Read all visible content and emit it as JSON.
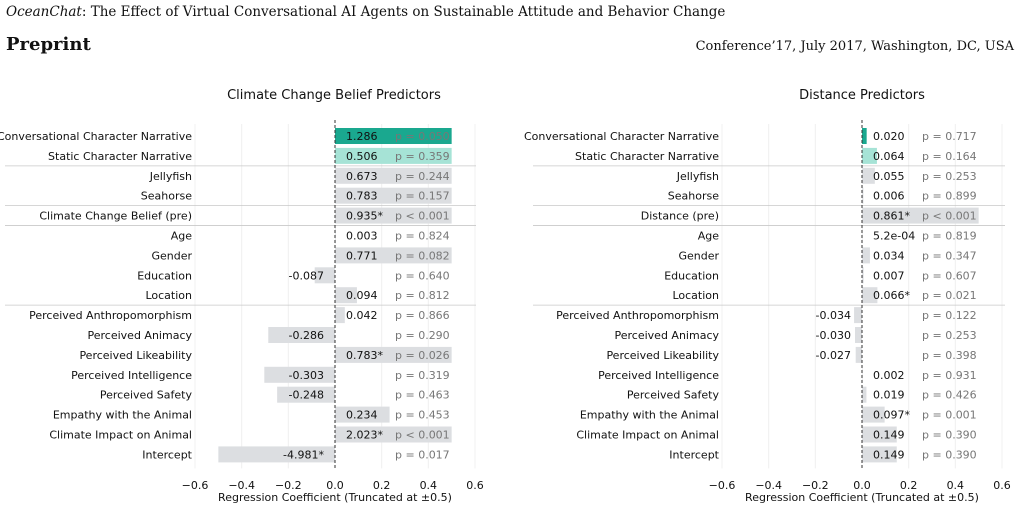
{
  "header": {
    "title_italic": "OceanChat",
    "title_rest": ": The Effect of Virtual Conversational AI Agents on Sustainable Attitude and Behavior Change",
    "preprint_label": "Preprint",
    "conference": "Conference’17, July 2017, Washington, DC, USA"
  },
  "colors": {
    "highlight": "#1aa88f",
    "highlight_light": "#a6e3d6",
    "bar": "#dcdee1",
    "pvalue_text": "#777777",
    "value_text": "#111111"
  },
  "chart_data": [
    {
      "type": "bar",
      "orientation": "horizontal",
      "title": "Climate Change Belief Predictors",
      "xlabel": "Regression Coefficient (Truncated at ±0.5)",
      "xlim": [
        -0.6,
        0.6
      ],
      "xticks": [
        "−0.6",
        "−0.4",
        "−0.2",
        "0.0",
        "0.2",
        "0.4",
        "0.6"
      ],
      "truncate": 0.5,
      "grid": true,
      "group_separators_after": [
        1,
        3,
        4,
        8
      ],
      "categories": [
        "Conversational Character Narrative",
        "Static Character Narrative",
        "Jellyfish",
        "Seahorse",
        "Climate Change Belief (pre)",
        "Age",
        "Gender",
        "Education",
        "Location",
        "Perceived Anthropomorphism",
        "Perceived Animacy",
        "Perceived Likeability",
        "Perceived Intelligence",
        "Perceived Safety",
        "Empathy with the Animal",
        "Climate Impact on Animal",
        "Intercept"
      ],
      "values": [
        1.286,
        0.506,
        0.673,
        0.783,
        0.935,
        0.003,
        0.771,
        -0.087,
        0.094,
        0.042,
        -0.286,
        0.783,
        -0.303,
        -0.248,
        0.234,
        2.023,
        -4.981
      ],
      "value_labels": [
        "1.286",
        "0.506",
        "0.673",
        "0.783",
        "0.935*",
        "0.003",
        "0.771",
        "-0.087",
        "0.094",
        "0.042",
        "-0.286",
        "0.783*",
        "-0.303",
        "-0.248",
        "0.234",
        "2.023*",
        "-4.981*"
      ],
      "p_values": [
        "p = 0.050",
        "p = 0.359",
        "p = 0.244",
        "p = 0.157",
        "p < 0.001",
        "p = 0.824",
        "p = 0.082",
        "p = 0.640",
        "p = 0.812",
        "p = 0.866",
        "p = 0.290",
        "p = 0.026",
        "p = 0.319",
        "p = 0.463",
        "p = 0.453",
        "p < 0.001",
        "p = 0.017"
      ],
      "bar_colors": [
        "highlight",
        "highlight_light",
        "bar",
        "bar",
        "bar",
        "bar",
        "bar",
        "bar",
        "bar",
        "bar",
        "bar",
        "bar",
        "bar",
        "bar",
        "bar",
        "bar",
        "bar"
      ]
    },
    {
      "type": "bar",
      "orientation": "horizontal",
      "title": "Distance Predictors",
      "xlabel": "Regression Coefficient (Truncated at ±0.5)",
      "xlim": [
        -0.6,
        0.6
      ],
      "xticks": [
        "−0.6",
        "−0.4",
        "−0.2",
        "0.0",
        "0.2",
        "0.4",
        "0.6"
      ],
      "truncate": 0.5,
      "grid": true,
      "group_separators_after": [
        1,
        3,
        4,
        8
      ],
      "categories": [
        "Conversational Character Narrative",
        "Static Character Narrative",
        "Jellyfish",
        "Seahorse",
        "Distance (pre)",
        "Age",
        "Gender",
        "Education",
        "Location",
        "Perceived Anthropomorphism",
        "Perceived Animacy",
        "Perceived Likeability",
        "Perceived Intelligence",
        "Perceived Safety",
        "Empathy with the Animal",
        "Climate Impact on Animal",
        "Intercept"
      ],
      "values": [
        0.02,
        0.064,
        0.055,
        0.006,
        0.861,
        0.00052,
        0.034,
        0.007,
        0.066,
        -0.034,
        -0.03,
        -0.027,
        0.002,
        0.019,
        0.097,
        0.149,
        0.149
      ],
      "value_labels": [
        "0.020",
        "0.064",
        "0.055",
        "0.006",
        "0.861*",
        "5.2e-04",
        "0.034",
        "0.007",
        "0.066*",
        "-0.034",
        "-0.030",
        "-0.027",
        "0.002",
        "0.019",
        "0.097*",
        "0.149",
        "0.149"
      ],
      "p_values": [
        "p = 0.717",
        "p = 0.164",
        "p = 0.253",
        "p = 0.899",
        "p < 0.001",
        "p = 0.819",
        "p = 0.347",
        "p = 0.607",
        "p = 0.021",
        "p = 0.122",
        "p = 0.253",
        "p = 0.398",
        "p = 0.931",
        "p = 0.426",
        "p = 0.001",
        "p = 0.390",
        "p = 0.390"
      ],
      "bar_colors": [
        "highlight",
        "highlight_light",
        "bar",
        "bar",
        "bar",
        "bar",
        "bar",
        "bar",
        "bar",
        "bar",
        "bar",
        "bar",
        "bar",
        "bar",
        "bar",
        "bar",
        "bar"
      ]
    }
  ]
}
